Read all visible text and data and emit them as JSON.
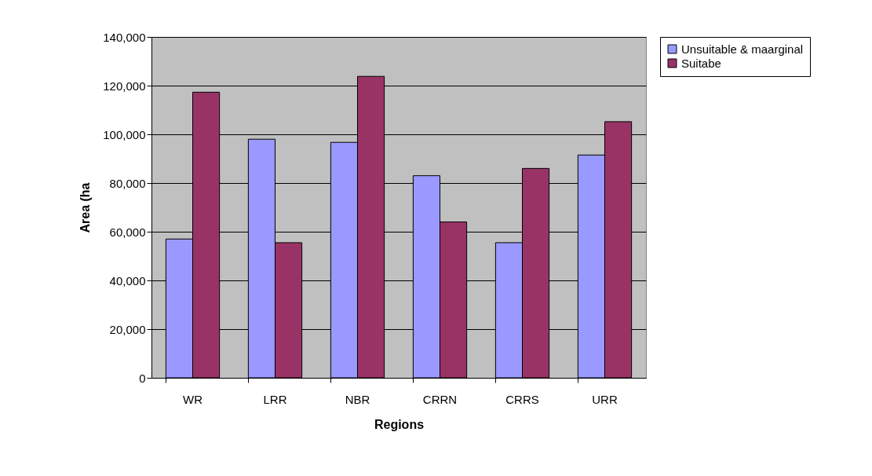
{
  "chart_data": {
    "type": "bar",
    "xlabel": "Regions",
    "ylabel": "Area (ha",
    "categories": [
      "WR",
      "LRR",
      "NBR",
      "CRRN",
      "CRRS",
      "URR"
    ],
    "series": [
      {
        "name": "Unsuitable & maarginal",
        "color": "#9999ff",
        "values": [
          57000,
          98000,
          96700,
          83000,
          55500,
          91500
        ]
      },
      {
        "name": "Suitabe",
        "color": "#993366",
        "values": [
          117300,
          55500,
          123800,
          64000,
          86000,
          105200
        ]
      }
    ],
    "ylim": [
      0,
      140000
    ],
    "yticks": [
      0,
      {
        "value": 20000,
        "label": "20,000"
      },
      {
        "value": 40000,
        "label": "40,000"
      },
      {
        "value": 60000,
        "label": "60,000"
      },
      {
        "value": 80000,
        "label": "80,000"
      },
      {
        "value": 100000,
        "label": "100,000"
      },
      {
        "value": 120000,
        "label": "120,000"
      },
      {
        "value": 140000,
        "label": "140,000"
      }
    ],
    "grid": "y",
    "legend": "right"
  }
}
